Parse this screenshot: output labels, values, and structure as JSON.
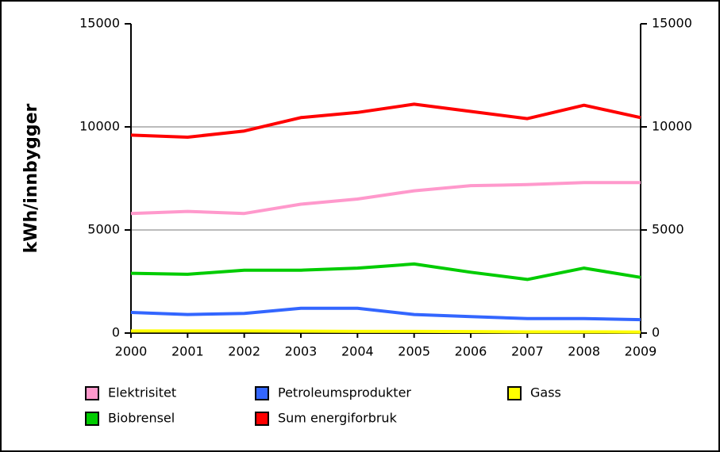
{
  "chart_data": {
    "type": "line",
    "y_label": "kWh/innbygger",
    "x": [
      2000,
      2001,
      2002,
      2003,
      2004,
      2005,
      2006,
      2007,
      2008,
      2009
    ],
    "xlim": [
      2000,
      2009
    ],
    "xticks": [
      2000,
      2001,
      2002,
      2003,
      2004,
      2005,
      2006,
      2007,
      2008,
      2009
    ],
    "ylim": [
      0,
      15000
    ],
    "yticks": [
      0,
      5000,
      10000,
      15000
    ],
    "y2lim": [
      0,
      15000
    ],
    "y2ticks": [
      0,
      5000,
      10000,
      15000
    ],
    "grid": true,
    "legend": "bottom",
    "series": [
      {
        "name": "Elektrisitet",
        "color": "#ff99cc",
        "values": [
          5800,
          5900,
          5800,
          6250,
          6500,
          6900,
          7150,
          7200,
          7300,
          7300
        ]
      },
      {
        "name": "Petroleumsprodukter",
        "color": "#3366ff",
        "values": [
          1000,
          900,
          950,
          1200,
          1200,
          900,
          800,
          700,
          700,
          650
        ]
      },
      {
        "name": "Gass",
        "color": "#ffff00",
        "values": [
          100,
          100,
          100,
          90,
          80,
          80,
          70,
          60,
          60,
          50
        ]
      },
      {
        "name": "Biobrensel",
        "color": "#00cc00",
        "values": [
          2900,
          2850,
          3050,
          3050,
          3150,
          3350,
          2950,
          2600,
          3150,
          2700
        ]
      },
      {
        "name": "Sum energiforbruk",
        "color": "#ff0000",
        "values": [
          9600,
          9500,
          9800,
          10450,
          10700,
          11100,
          10750,
          10400,
          11050,
          10450
        ]
      }
    ]
  }
}
